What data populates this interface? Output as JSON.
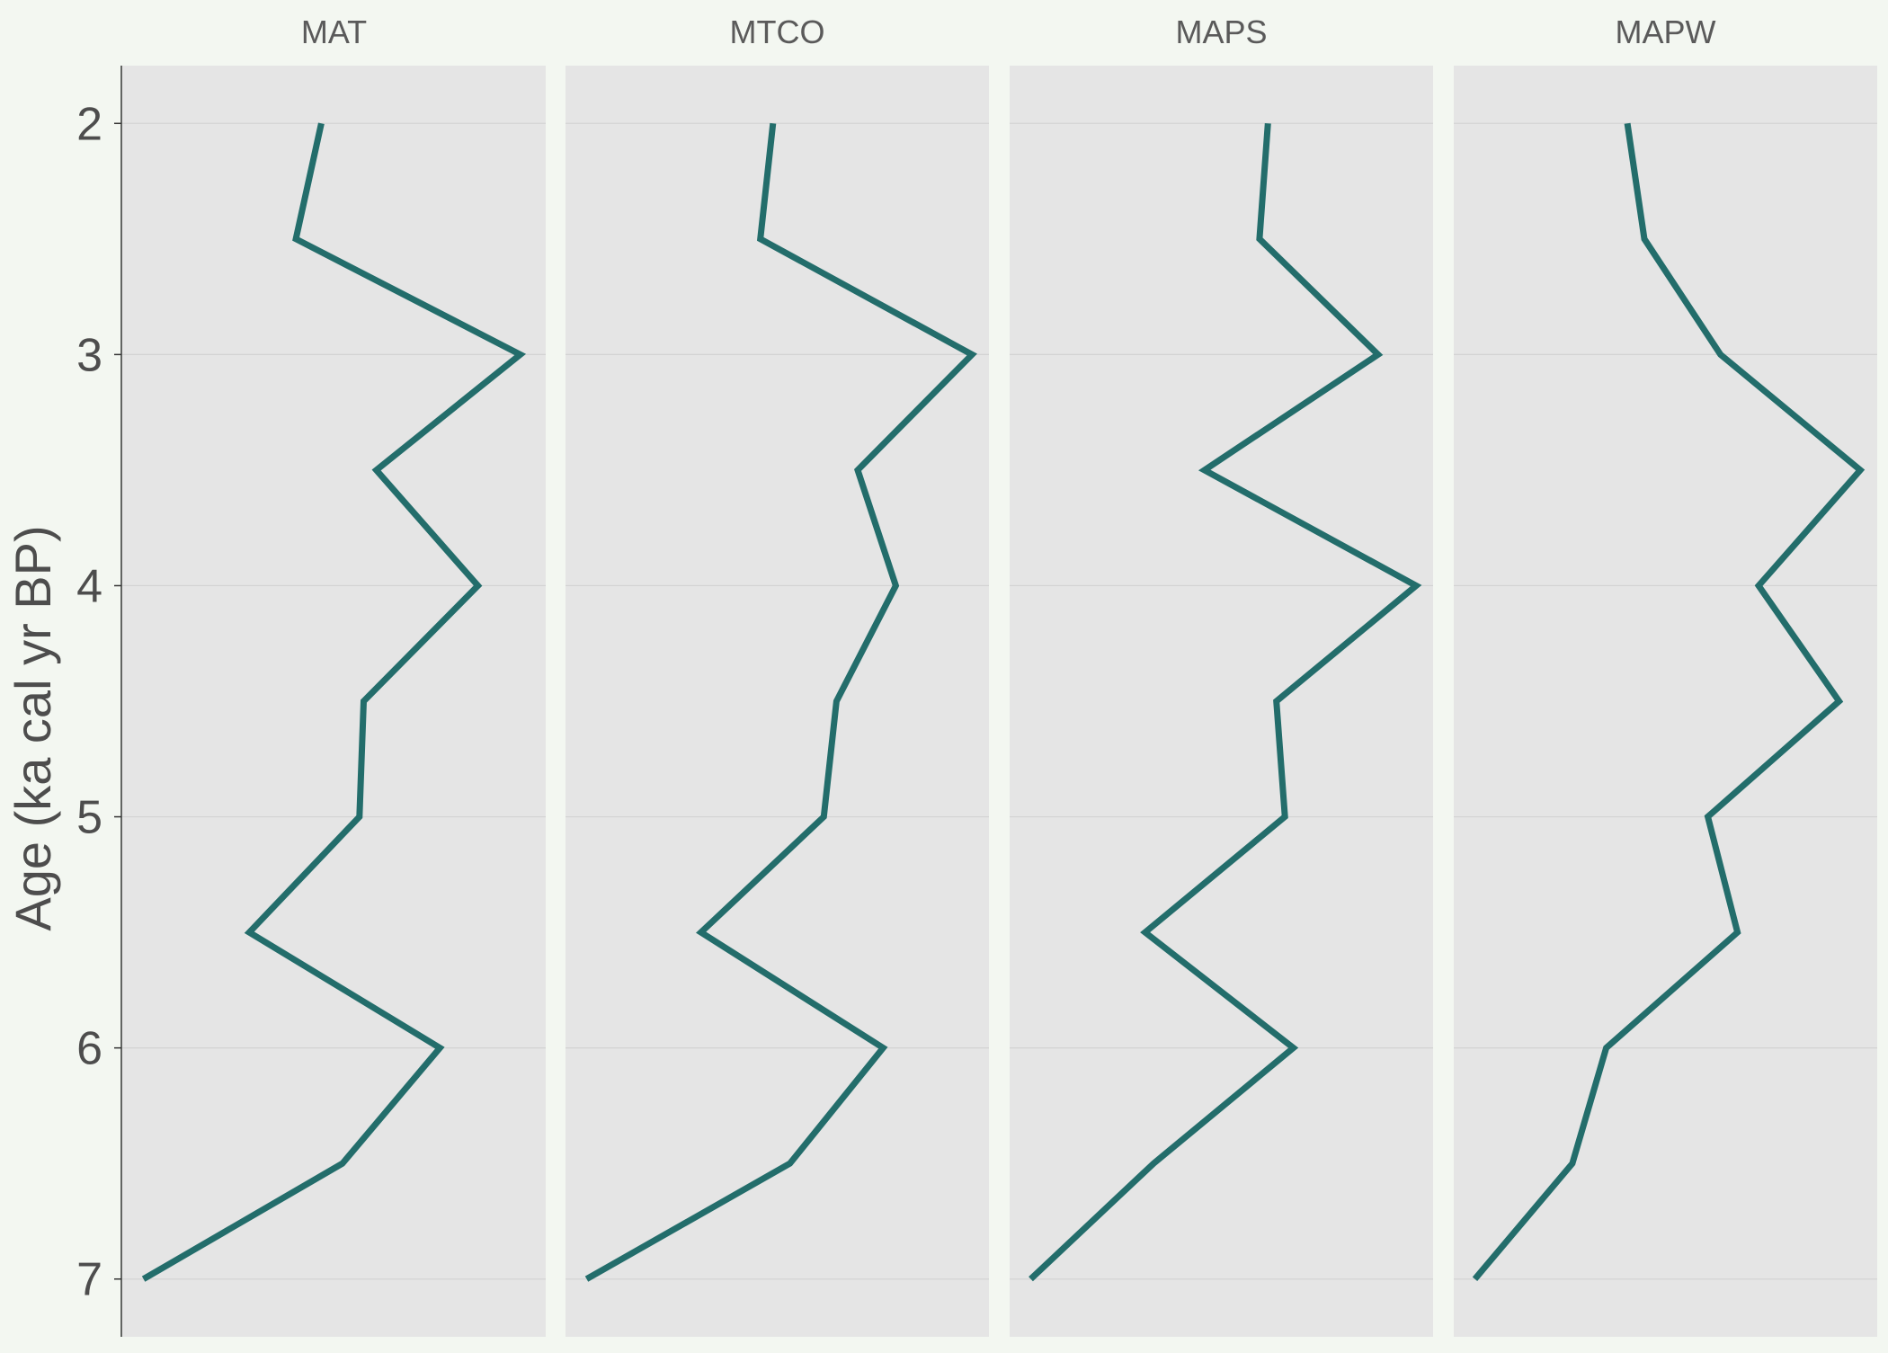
{
  "chart_data": {
    "type": "line",
    "orientation": "vertical-depth-profile",
    "ylabel": "Age (ka cal yr BP)",
    "y_axis_reversed": true,
    "ylim": [
      1.75,
      7.25
    ],
    "y_ticks": [
      2,
      3,
      4,
      5,
      6,
      7
    ],
    "x_ticks_shown": false,
    "grid": "horizontal",
    "line_color": "#236d6b",
    "panel_background": "#e5e5e5",
    "page_background": "#f3f7f1",
    "age": [
      2.0,
      2.5,
      3.0,
      3.5,
      4.0,
      4.5,
      5.0,
      5.5,
      6.0,
      6.5,
      7.0
    ],
    "panels": [
      {
        "title": "MAT",
        "xlim": [
          0,
          100
        ],
        "values": [
          47,
          41,
          94,
          60,
          84,
          57,
          56,
          30,
          75,
          52,
          5
        ]
      },
      {
        "title": "MTCO",
        "xlim": [
          0,
          100
        ],
        "values": [
          49,
          46,
          96,
          69,
          78,
          64,
          61,
          32,
          75,
          53,
          5
        ]
      },
      {
        "title": "MAPS",
        "xlim": [
          0,
          100
        ],
        "values": [
          61,
          59,
          87,
          46,
          96,
          63,
          65,
          32,
          67,
          34,
          5
        ]
      },
      {
        "title": "MAPW",
        "xlim": [
          0,
          100
        ],
        "values": [
          41,
          45,
          63,
          96,
          72,
          91,
          60,
          67,
          36,
          28,
          5
        ]
      }
    ]
  }
}
